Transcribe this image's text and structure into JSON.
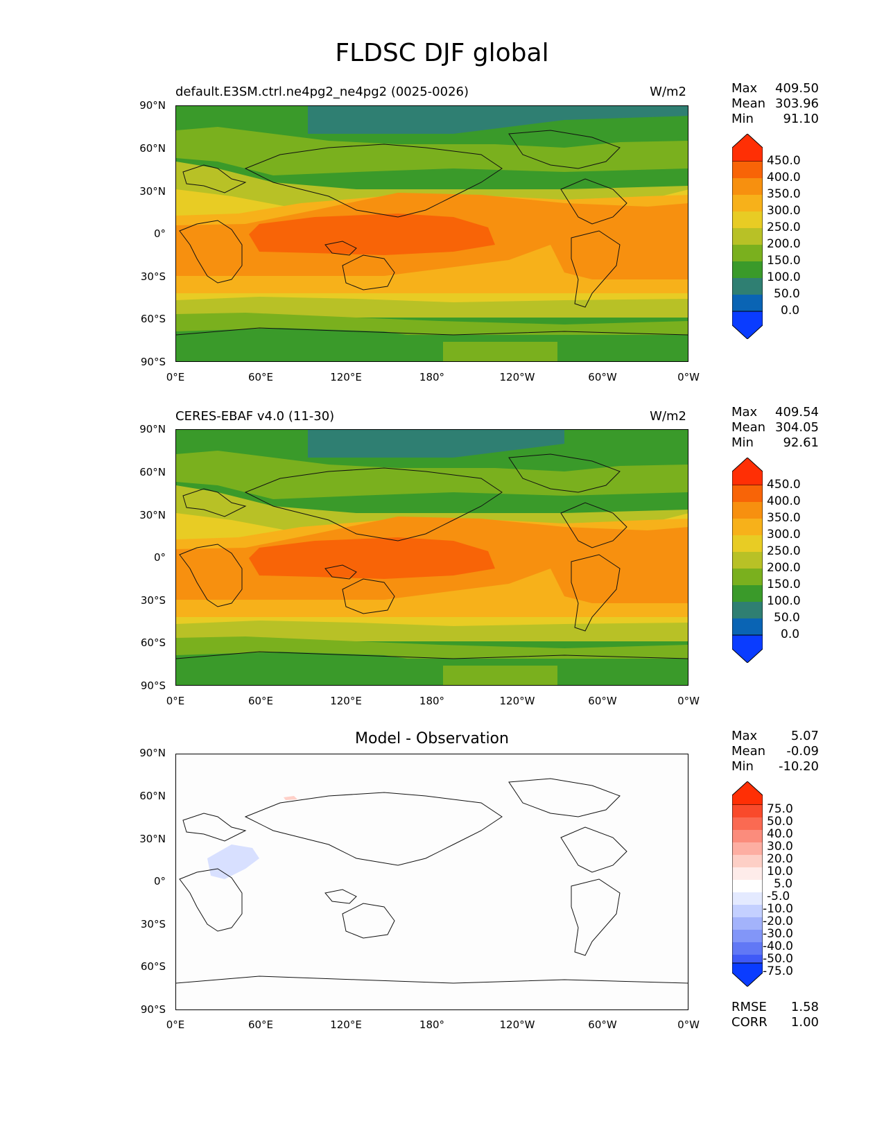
{
  "title": "FLDSC DJF global",
  "units": "W/m2",
  "colors": {
    "c0": "#0a3cff",
    "c50": "#0a64b4",
    "c100": "#2f7f72",
    "c150": "#3a9a2a",
    "c200": "#7ab01e",
    "c250": "#b8c126",
    "c300": "#e8cc24",
    "c350": "#f7b11a",
    "c400": "#f7900f",
    "c450": "#f86407",
    "c500": "#ff2f05"
  },
  "lat_ticks": [
    "90°N",
    "60°N",
    "30°N",
    "0°",
    "30°S",
    "60°S",
    "90°S"
  ],
  "lon_ticks": [
    "0°E",
    "60°E",
    "120°E",
    "180°",
    "120°W",
    "60°W",
    "0°W"
  ],
  "panels": [
    {
      "left_title": "default.E3SM.ctrl.ne4pg2_ne4pg2 (0025-0026)",
      "right_title": "W/m2",
      "stats": {
        "max_label": "Max",
        "max": "409.50",
        "mean_label": "Mean",
        "mean": "303.96",
        "min_label": "Min",
        "min": "91.10"
      },
      "colorbar_labels": [
        "450.0",
        "400.0",
        "350.0",
        "300.0",
        "250.0",
        "200.0",
        "150.0",
        "100.0",
        "50.0",
        "0.0"
      ]
    },
    {
      "left_title": "CERES-EBAF v4.0 (11-30)",
      "right_title": "W/m2",
      "stats": {
        "max_label": "Max",
        "max": "409.54",
        "mean_label": "Mean",
        "mean": "304.05",
        "min_label": "Min",
        "min": "92.61"
      },
      "colorbar_labels": [
        "450.0",
        "400.0",
        "350.0",
        "300.0",
        "250.0",
        "200.0",
        "150.0",
        "100.0",
        "50.0",
        "0.0"
      ]
    },
    {
      "center_title": "Model - Observation",
      "stats": {
        "max_label": "Max",
        "max": "5.07",
        "mean_label": "Mean",
        "mean": "-0.09",
        "min_label": "Min",
        "min": "-10.20"
      },
      "colorbar_labels": [
        "75.0",
        "50.0",
        "40.0",
        "30.0",
        "20.0",
        "10.0",
        "5.0",
        "-5.0",
        "-10.0",
        "-20.0",
        "-30.0",
        "-40.0",
        "-50.0",
        "-75.0"
      ],
      "metrics": {
        "rmse_label": "RMSE",
        "rmse": "1.58",
        "corr_label": "CORR",
        "corr": "1.00"
      }
    }
  ]
}
